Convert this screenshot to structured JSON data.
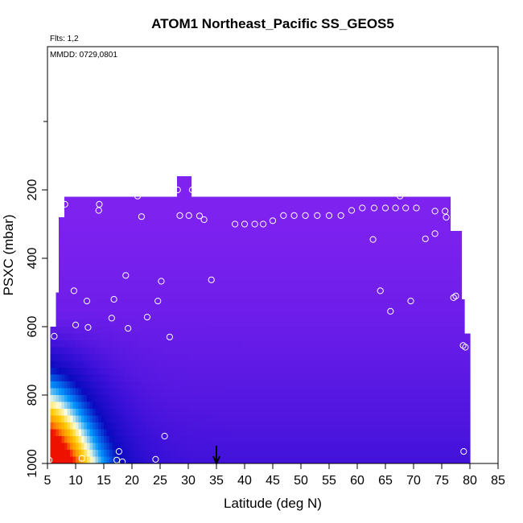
{
  "chart_data": {
    "type": "heatmap",
    "title": "ATOM1 Northeast_Pacific SS_GEOS5",
    "subtitle": "Flts: 1,2",
    "annotation": "MMDD: 0729,0801",
    "xlabel": "Latitude (deg N)",
    "ylabel": "PSXC (mbar)",
    "xlim": [
      5,
      85
    ],
    "ylim": [
      1000,
      0
    ],
    "xticks": [
      "5",
      "10",
      "15",
      "20",
      "25",
      "30",
      "35",
      "40",
      "45",
      "50",
      "55",
      "60",
      "65",
      "70",
      "75",
      "80",
      "85"
    ],
    "yticks": [
      "200",
      "400",
      "600",
      "800",
      "1000"
    ],
    "x_marker": 35,
    "grid": false,
    "colorscale": [
      "#7f22f0",
      "#3a10d8",
      "#0a0ac0",
      "#00a0ff",
      "#ffffe0",
      "#ffcc00",
      "#ff8800",
      "#ee1100"
    ],
    "observation_points": [
      {
        "x": 5.3,
        "y": 990
      },
      {
        "x": 5.8,
        "y": 515
      },
      {
        "x": 6.2,
        "y": 628
      },
      {
        "x": 7.3,
        "y": 262
      },
      {
        "x": 8.1,
        "y": 242
      },
      {
        "x": 9.7,
        "y": 495
      },
      {
        "x": 10.0,
        "y": 595
      },
      {
        "x": 11.1,
        "y": 985
      },
      {
        "x": 12.0,
        "y": 525
      },
      {
        "x": 12.2,
        "y": 602
      },
      {
        "x": 14.2,
        "y": 242
      },
      {
        "x": 14.1,
        "y": 260
      },
      {
        "x": 16.4,
        "y": 575
      },
      {
        "x": 16.8,
        "y": 520
      },
      {
        "x": 17.3,
        "y": 990
      },
      {
        "x": 17.7,
        "y": 965
      },
      {
        "x": 18.3,
        "y": 995
      },
      {
        "x": 18.9,
        "y": 450
      },
      {
        "x": 19.3,
        "y": 605
      },
      {
        "x": 21.0,
        "y": 218
      },
      {
        "x": 21.7,
        "y": 278
      },
      {
        "x": 22.7,
        "y": 572
      },
      {
        "x": 24.2,
        "y": 988
      },
      {
        "x": 24.6,
        "y": 525
      },
      {
        "x": 25.2,
        "y": 467
      },
      {
        "x": 25.8,
        "y": 920
      },
      {
        "x": 26.7,
        "y": 630
      },
      {
        "x": 28.1,
        "y": 200
      },
      {
        "x": 28.5,
        "y": 275
      },
      {
        "x": 30.1,
        "y": 275
      },
      {
        "x": 30.7,
        "y": 200
      },
      {
        "x": 32.0,
        "y": 276
      },
      {
        "x": 32.8,
        "y": 287
      },
      {
        "x": 34.1,
        "y": 463
      },
      {
        "x": 38.3,
        "y": 300
      },
      {
        "x": 40.0,
        "y": 300
      },
      {
        "x": 41.8,
        "y": 300
      },
      {
        "x": 43.3,
        "y": 300
      },
      {
        "x": 45.0,
        "y": 290
      },
      {
        "x": 46.9,
        "y": 275
      },
      {
        "x": 48.8,
        "y": 275
      },
      {
        "x": 50.8,
        "y": 275
      },
      {
        "x": 52.9,
        "y": 275
      },
      {
        "x": 55.0,
        "y": 275
      },
      {
        "x": 57.1,
        "y": 275
      },
      {
        "x": 59.0,
        "y": 260
      },
      {
        "x": 60.9,
        "y": 253
      },
      {
        "x": 62.8,
        "y": 345
      },
      {
        "x": 63.0,
        "y": 253
      },
      {
        "x": 64.1,
        "y": 495
      },
      {
        "x": 65.0,
        "y": 253
      },
      {
        "x": 65.9,
        "y": 555
      },
      {
        "x": 66.8,
        "y": 253
      },
      {
        "x": 67.6,
        "y": 218
      },
      {
        "x": 68.6,
        "y": 253
      },
      {
        "x": 69.5,
        "y": 525
      },
      {
        "x": 70.5,
        "y": 253
      },
      {
        "x": 72.1,
        "y": 343
      },
      {
        "x": 73.8,
        "y": 328
      },
      {
        "x": 73.8,
        "y": 262
      },
      {
        "x": 75.6,
        "y": 262
      },
      {
        "x": 75.8,
        "y": 280
      },
      {
        "x": 77.1,
        "y": 515
      },
      {
        "x": 77.5,
        "y": 510
      },
      {
        "x": 78.8,
        "y": 655
      },
      {
        "x": 79.2,
        "y": 660
      },
      {
        "x": 78.9,
        "y": 965
      }
    ]
  }
}
